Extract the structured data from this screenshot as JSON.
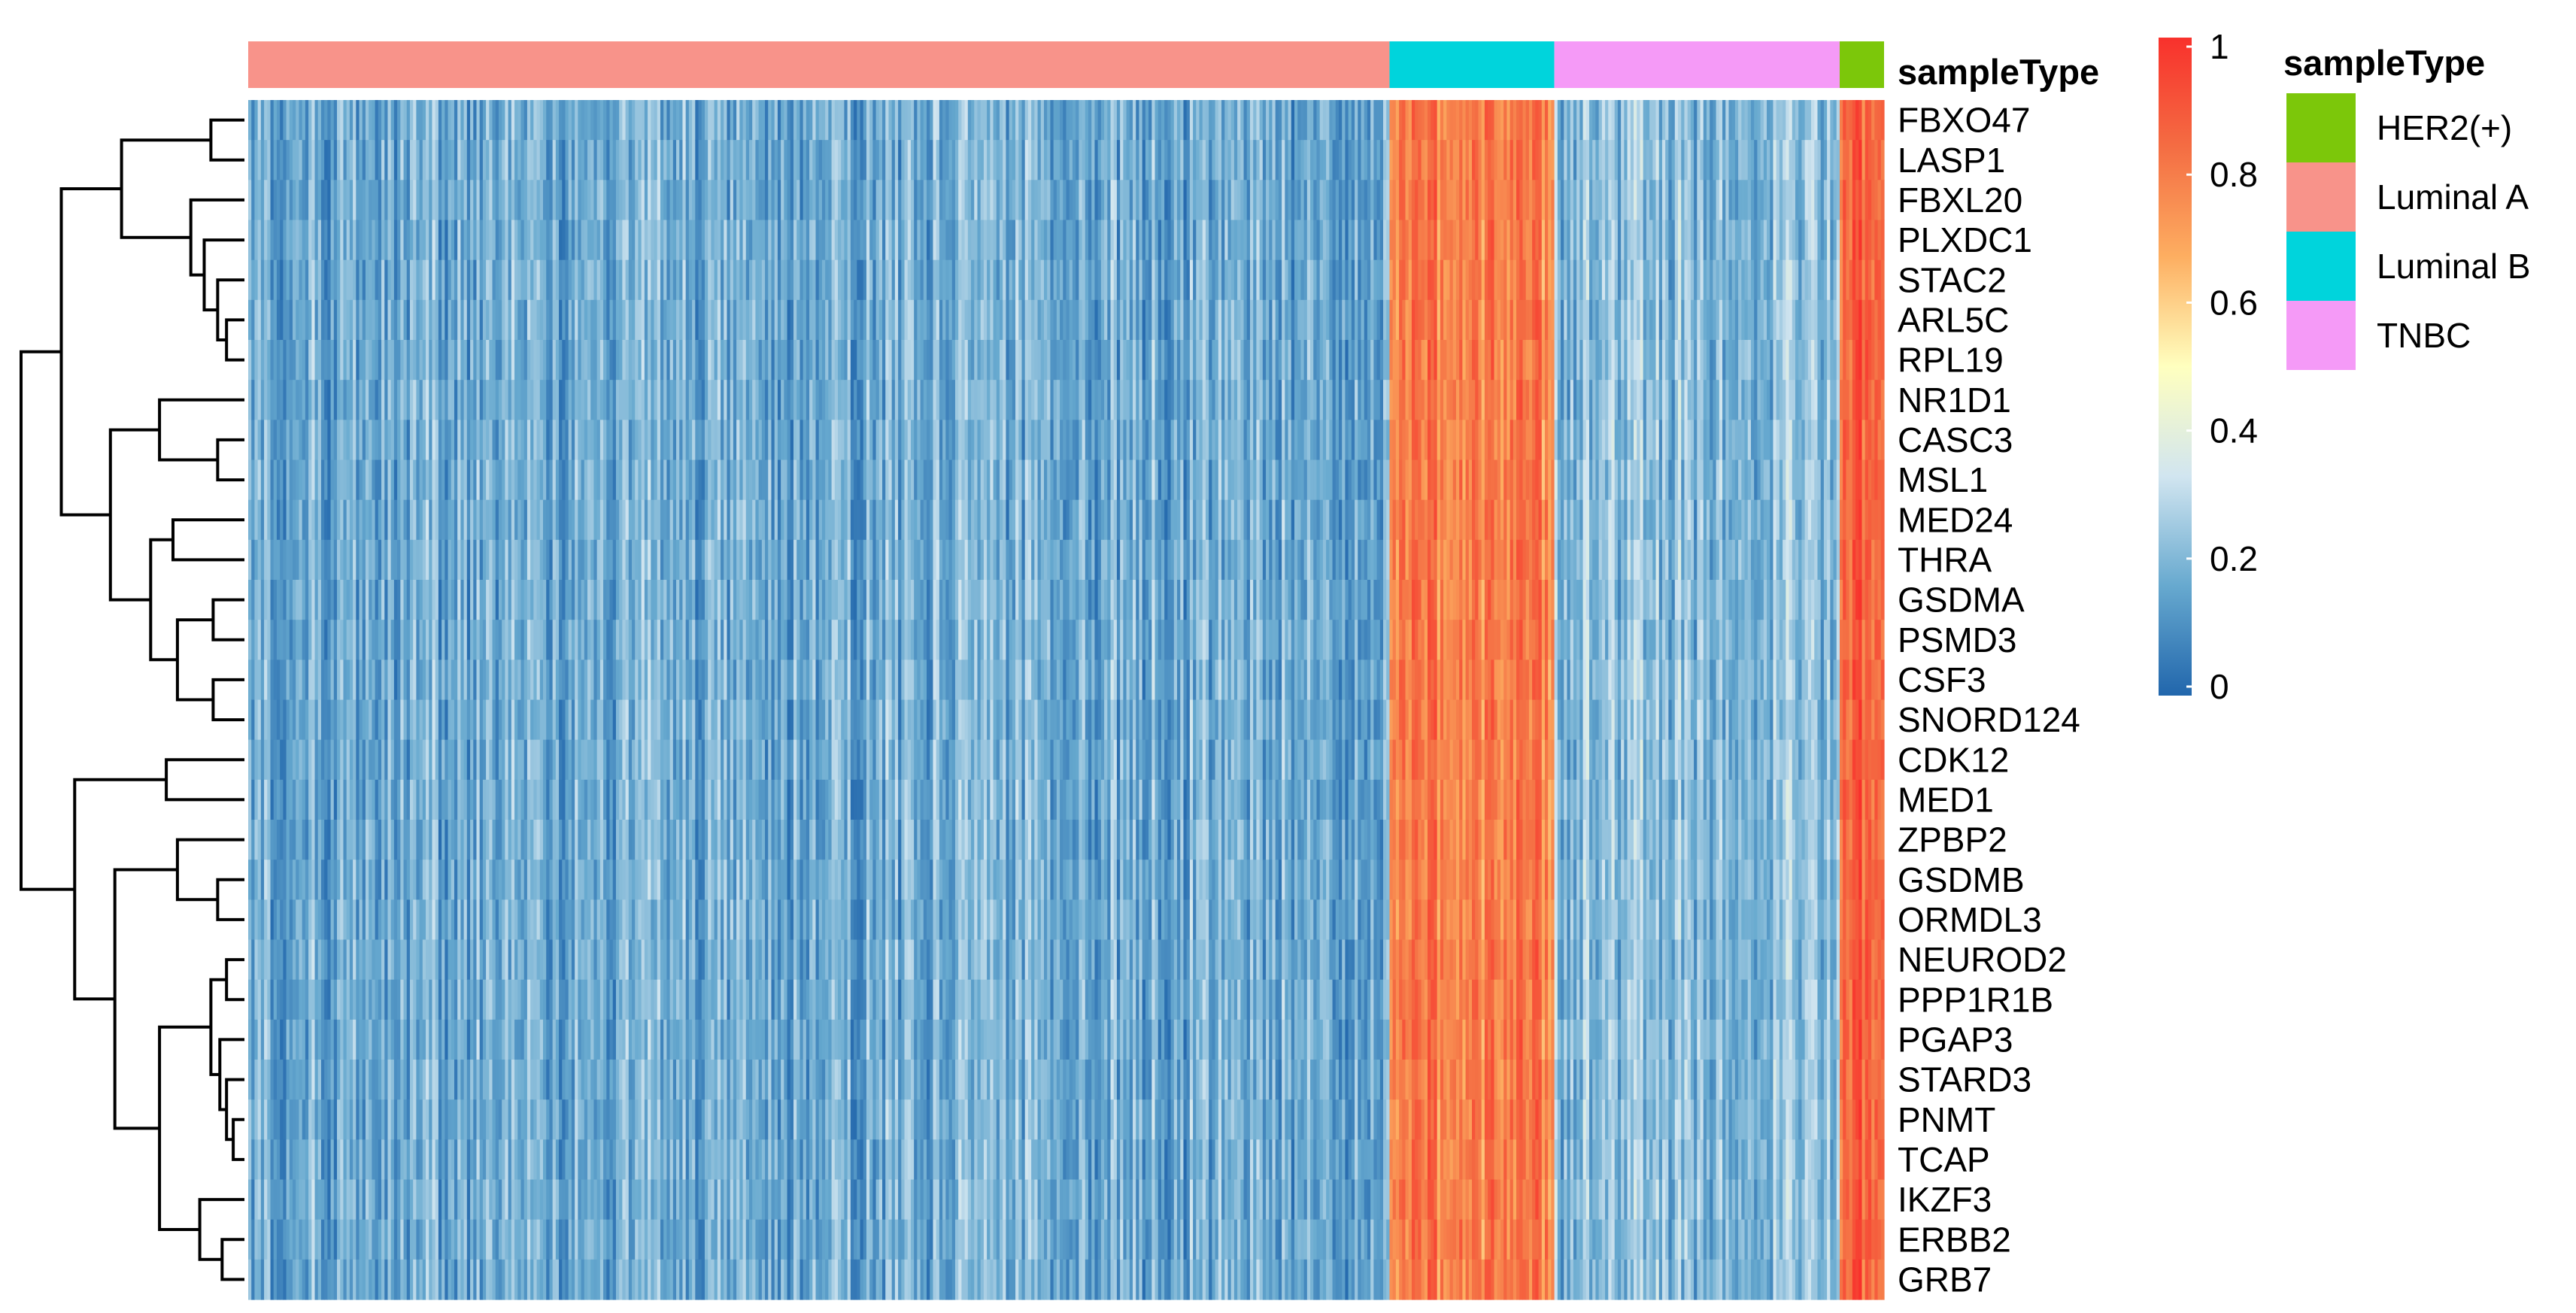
{
  "chart_data": {
    "type": "heatmap",
    "annotation_title": "sampleType",
    "genes": [
      "FBXO47",
      "LASP1",
      "FBXL20",
      "PLXDC1",
      "STAC2",
      "ARL5C",
      "RPL19",
      "NR1D1",
      "CASC3",
      "MSL1",
      "MED24",
      "THRA",
      "GSDMA",
      "PSMD3",
      "CSF3",
      "SNORD124",
      "CDK12",
      "MED1",
      "ZPBP2",
      "GSDMB",
      "ORMDL3",
      "NEUROD2",
      "PPP1R1B",
      "PGAP3",
      "STARD3",
      "PNMT",
      "TCAP",
      "IKZF3",
      "ERBB2",
      "GRB7"
    ],
    "sample_groups": [
      {
        "name": "Luminal A",
        "count": 360,
        "color": "#F8938A",
        "level": 0.18
      },
      {
        "name": "Luminal B",
        "count": 52,
        "color": "#00D4DC",
        "level": 0.78
      },
      {
        "name": "TNBC",
        "count": 90,
        "color": "#F59AF7",
        "level": 0.22
      },
      {
        "name": "HER2(+)",
        "count": 14,
        "color": "#7CC70A",
        "level": 0.88
      }
    ],
    "legend": {
      "title": "sampleType",
      "entries": [
        {
          "label": "HER2(+)",
          "color": "#7CC70A"
        },
        {
          "label": "Luminal A",
          "color": "#F8938A"
        },
        {
          "label": "Luminal B",
          "color": "#00D4DC"
        },
        {
          "label": "TNBC",
          "color": "#F59AF7"
        }
      ]
    },
    "color_scale": {
      "min": 0,
      "max": 1,
      "ticks": [
        "1",
        "0.8",
        "0.6",
        "0.4",
        "0.2",
        "0"
      ],
      "colors": [
        "#2166AC",
        "#67A9CF",
        "#D1E5F0",
        "#FFFFBF",
        "#FDAE61",
        "#F46D43",
        "#F8312C"
      ]
    },
    "dendrogram": "row"
  }
}
